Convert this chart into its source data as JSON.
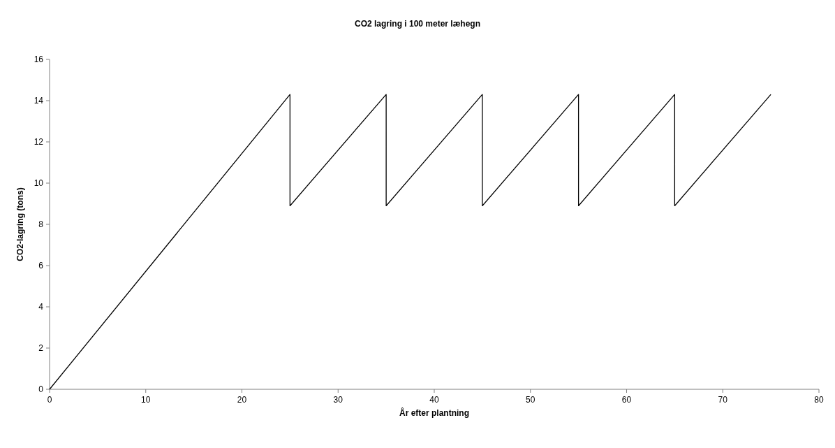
{
  "chart_data": {
    "type": "line",
    "title": "CO2 lagring i 100 meter læhegn",
    "xlabel": "År efter plantning",
    "ylabel": "CO2-lagring (tons)",
    "x": [
      0,
      25,
      25,
      35,
      35,
      45,
      45,
      55,
      55,
      65,
      65,
      75
    ],
    "series": [
      {
        "color": "#000000",
        "values": [
          0,
          14.3,
          8.9,
          14.3,
          8.9,
          14.3,
          8.9,
          14.3,
          8.9,
          14.3,
          8.9,
          14.3
        ]
      }
    ],
    "xlim": [
      0,
      80
    ],
    "xticks": [
      0,
      10,
      20,
      30,
      40,
      50,
      60,
      70,
      80
    ],
    "ylim": [
      0,
      16
    ],
    "yticks": [
      0,
      2,
      4,
      6,
      8,
      10,
      12,
      14,
      16
    ],
    "grid": false,
    "marker": "none",
    "line_style": "solid"
  }
}
